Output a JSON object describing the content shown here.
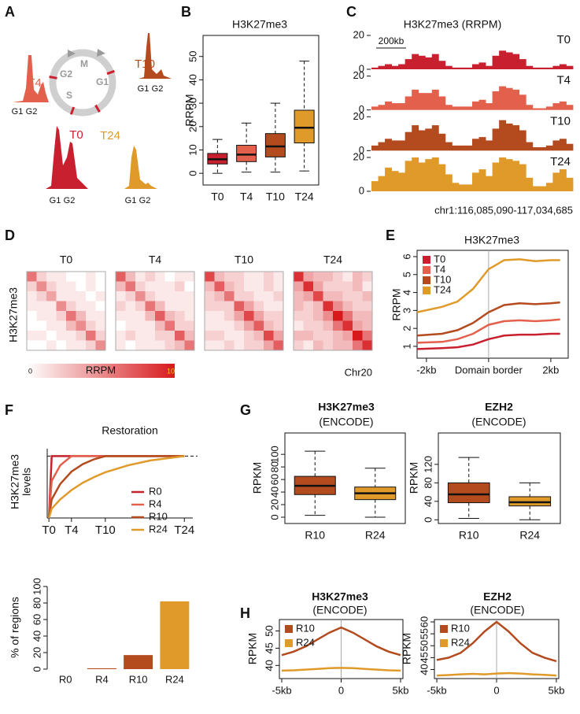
{
  "cell_cycle": {
    "panel": "A",
    "phases": [
      "M",
      "G2",
      "G1",
      "S"
    ],
    "timepoints": [
      "T0",
      "T4",
      "T10",
      "T24"
    ],
    "peak_labels": [
      "G1",
      "G2"
    ]
  },
  "chart_data": [
    {
      "type": "boxplot",
      "panel": "B",
      "title": "H3K27me3",
      "ylabel": "RRPM",
      "categories": [
        "T0",
        "T4",
        "T10",
        "T24"
      ],
      "colors": [
        "#c8202f",
        "#e3604c",
        "#b34b1f",
        "#e09a2a"
      ],
      "whisker_low": [
        0,
        0.5,
        0.5,
        1
      ],
      "q1": [
        4,
        5,
        7,
        13
      ],
      "median": [
        6,
        8,
        11.5,
        19.5
      ],
      "q3": [
        8.5,
        12,
        17,
        27
      ],
      "whisker_high": [
        14.5,
        21.5,
        30,
        48
      ],
      "ylim": [
        -5,
        59
      ],
      "yticks": [
        0,
        10,
        20,
        30,
        40,
        50
      ]
    },
    {
      "type": "track",
      "panel": "C",
      "title": "H3K27me3 (RRPM)",
      "scale_bar": "200kb",
      "region": "chr1:116,085,090-117,034,685",
      "ylim": [
        0,
        20
      ],
      "yticks": [
        0,
        20
      ],
      "series": [
        {
          "name": "T0",
          "color": "#c8202f",
          "values": [
            1,
            2,
            3,
            2,
            3,
            6,
            9,
            8,
            7,
            9,
            5,
            2,
            1,
            1,
            1,
            3,
            4,
            2,
            8,
            11,
            10,
            9,
            6,
            2,
            1,
            1,
            1,
            2,
            3,
            2
          ]
        },
        {
          "name": "T4",
          "color": "#e3604c",
          "values": [
            2,
            3,
            5,
            4,
            4,
            8,
            12,
            10,
            10,
            12,
            8,
            3,
            2,
            2,
            2,
            5,
            6,
            4,
            11,
            14,
            13,
            12,
            9,
            3,
            1,
            1,
            2,
            4,
            5,
            3
          ]
        },
        {
          "name": "T10",
          "color": "#b34b1f",
          "values": [
            3,
            5,
            7,
            6,
            6,
            11,
            15,
            12,
            13,
            15,
            10,
            5,
            3,
            3,
            3,
            7,
            8,
            6,
            13,
            18,
            16,
            15,
            12,
            5,
            2,
            2,
            3,
            6,
            7,
            4
          ]
        },
        {
          "name": "T24",
          "color": "#e09a2a",
          "values": [
            6,
            9,
            14,
            12,
            11,
            18,
            20,
            17,
            19,
            20,
            16,
            10,
            5,
            4,
            4,
            11,
            13,
            9,
            17,
            20,
            19,
            18,
            16,
            8,
            3,
            3,
            5,
            11,
            13,
            8
          ]
        }
      ]
    },
    {
      "type": "heatmap",
      "panel": "D",
      "ylabel": "H3K27me3",
      "footnote": "Chr20",
      "color": "#d7191c",
      "colorbar": {
        "label": "RRPM",
        "range": [
          0,
          10
        ]
      },
      "series": [
        {
          "name": "T0",
          "values": [
            [
              6,
              2,
              1,
              1,
              0,
              0,
              1,
              0
            ],
            [
              2,
              5,
              2,
              1,
              1,
              0,
              1,
              0
            ],
            [
              1,
              2,
              4,
              1,
              1,
              1,
              0,
              1
            ],
            [
              1,
              1,
              1,
              5,
              2,
              1,
              1,
              0
            ],
            [
              0,
              1,
              1,
              2,
              6,
              3,
              1,
              1
            ],
            [
              0,
              0,
              1,
              1,
              3,
              5,
              2,
              1
            ],
            [
              1,
              1,
              0,
              1,
              1,
              2,
              6,
              2
            ],
            [
              0,
              0,
              1,
              0,
              1,
              1,
              2,
              5
            ]
          ]
        },
        {
          "name": "T4",
          "values": [
            [
              7,
              3,
              1,
              2,
              1,
              0,
              1,
              1
            ],
            [
              3,
              6,
              2,
              1,
              1,
              1,
              2,
              0
            ],
            [
              1,
              2,
              5,
              2,
              1,
              1,
              1,
              1
            ],
            [
              2,
              1,
              2,
              6,
              3,
              1,
              1,
              1
            ],
            [
              1,
              1,
              1,
              3,
              7,
              3,
              2,
              1
            ],
            [
              0,
              1,
              1,
              1,
              3,
              6,
              2,
              2
            ],
            [
              1,
              2,
              1,
              1,
              2,
              2,
              7,
              3
            ],
            [
              1,
              0,
              1,
              1,
              1,
              2,
              3,
              6
            ]
          ]
        },
        {
          "name": "T10",
          "values": [
            [
              8,
              3,
              2,
              2,
              1,
              1,
              2,
              1
            ],
            [
              3,
              7,
              3,
              2,
              1,
              1,
              2,
              1
            ],
            [
              2,
              3,
              6,
              2,
              2,
              1,
              1,
              2
            ],
            [
              2,
              2,
              2,
              7,
              4,
              2,
              1,
              1
            ],
            [
              1,
              1,
              2,
              4,
              8,
              4,
              2,
              2
            ],
            [
              1,
              1,
              1,
              2,
              4,
              7,
              3,
              2
            ],
            [
              2,
              2,
              1,
              1,
              2,
              3,
              8,
              4
            ],
            [
              1,
              1,
              2,
              1,
              2,
              2,
              4,
              7
            ]
          ]
        },
        {
          "name": "T24",
          "values": [
            [
              9,
              4,
              3,
              3,
              2,
              1,
              3,
              2
            ],
            [
              4,
              9,
              4,
              2,
              2,
              2,
              3,
              1
            ],
            [
              3,
              4,
              8,
              3,
              3,
              2,
              2,
              3
            ],
            [
              3,
              2,
              3,
              9,
              5,
              3,
              2,
              2
            ],
            [
              2,
              2,
              3,
              5,
              10,
              6,
              3,
              3
            ],
            [
              1,
              2,
              2,
              3,
              6,
              9,
              4,
              3
            ],
            [
              3,
              3,
              2,
              2,
              3,
              4,
              10,
              6
            ],
            [
              2,
              1,
              3,
              2,
              3,
              3,
              6,
              9
            ]
          ]
        }
      ]
    },
    {
      "type": "line",
      "panel": "E",
      "title": "H3K27me3",
      "ylabel": "RRPM",
      "x": [
        -2.3,
        -1.5,
        -1,
        -0.5,
        0,
        0.5,
        1,
        1.5,
        2,
        2.3
      ],
      "series": [
        {
          "name": "T0",
          "color": "#c8202f",
          "values": [
            0.85,
            0.9,
            0.95,
            1.1,
            1.4,
            1.6,
            1.65,
            1.65,
            1.7,
            1.7
          ]
        },
        {
          "name": "T4",
          "color": "#e3604c",
          "values": [
            1.2,
            1.25,
            1.4,
            1.7,
            2.2,
            2.4,
            2.45,
            2.4,
            2.45,
            2.5
          ]
        },
        {
          "name": "T10",
          "color": "#b34b1f",
          "values": [
            1.6,
            1.7,
            1.9,
            2.3,
            2.9,
            3.3,
            3.4,
            3.35,
            3.4,
            3.45
          ]
        },
        {
          "name": "T24",
          "color": "#e09a2a",
          "values": [
            2.9,
            3.2,
            3.5,
            4.2,
            5.3,
            5.8,
            5.85,
            5.75,
            5.8,
            5.8
          ]
        }
      ],
      "xlim": [
        -2.3,
        2.56
      ],
      "ylim": [
        0.34,
        6.35
      ],
      "xticks": [
        {
          "value": -2,
          "label": "-2kb"
        },
        {
          "value": 0,
          "label": "Domain border"
        },
        {
          "value": 2,
          "label": "2kb"
        }
      ],
      "yticks": [
        1,
        2,
        3,
        4,
        5,
        6
      ],
      "vline": 0,
      "legend": "top-left",
      "legend_marker": "square"
    },
    {
      "type": "line",
      "panel": "F",
      "title": "Restoration",
      "ylabel": [
        "H3K27me3",
        "levels"
      ],
      "x": [
        0,
        0.5,
        2,
        4,
        6,
        8,
        10,
        14,
        18,
        24
      ],
      "series": [
        {
          "name": "R0",
          "color": "#c8202f",
          "values": [
            0,
            1,
            1,
            1,
            1,
            1,
            1,
            1,
            1,
            1
          ]
        },
        {
          "name": "R4",
          "color": "#e3604c",
          "values": [
            0,
            0.6,
            0.85,
            1,
            1,
            1,
            1,
            1,
            1,
            1
          ]
        },
        {
          "name": "R10",
          "color": "#b34b1f",
          "values": [
            0,
            0.3,
            0.55,
            0.75,
            0.87,
            0.95,
            1,
            1,
            1,
            1
          ]
        },
        {
          "name": "R24",
          "color": "#e09a2a",
          "values": [
            0,
            0.15,
            0.3,
            0.45,
            0.57,
            0.66,
            0.74,
            0.85,
            0.93,
            1
          ]
        }
      ],
      "xlim": [
        -0.3,
        25.5
      ],
      "ylim": [
        0,
        1.12
      ],
      "xticks": [
        {
          "value": 0,
          "label": "T0"
        },
        {
          "value": 4,
          "label": "T4"
        },
        {
          "value": 10,
          "label": "T10"
        },
        {
          "value": 24,
          "label": "T24"
        }
      ],
      "hline": 1,
      "tick_colors": true,
      "legend": "bottom-right",
      "legend_marker": "line"
    },
    {
      "type": "bar",
      "ylabel": "% of regions",
      "categories": [
        "R0",
        "R4",
        "R10",
        "R24"
      ],
      "values": [
        0,
        1,
        17,
        82
      ],
      "colors": [
        "#c8202f",
        "#b34b1f",
        "#b34b1f",
        "#e09a2a"
      ],
      "ylim": [
        0,
        100
      ],
      "yticks": [
        0,
        20,
        40,
        60,
        80,
        100
      ]
    },
    {
      "type": "boxplot",
      "panel": "G",
      "title": "H3K27me3",
      "subtitle": "(ENCODE)",
      "ylabel": "RPKM",
      "categories": [
        "R10",
        "R24"
      ],
      "colors": [
        "#b34b1f",
        "#e09a2a"
      ],
      "whisker_low": [
        3,
        0
      ],
      "q1": [
        36,
        28
      ],
      "median": [
        50,
        38
      ],
      "q3": [
        65,
        48
      ],
      "whisker_high": [
        105,
        78
      ],
      "ylim": [
        -10,
        134
      ],
      "yticks": [
        0,
        20,
        40,
        60,
        80,
        100
      ]
    },
    {
      "type": "boxplot",
      "title": "EZH2",
      "subtitle": "(ENCODE)",
      "ylabel": "RPKM",
      "categories": [
        "R10",
        "R24"
      ],
      "colors": [
        "#b34b1f",
        "#e09a2a"
      ],
      "whisker_low": [
        3,
        0
      ],
      "q1": [
        37,
        30
      ],
      "median": [
        55,
        38
      ],
      "q3": [
        80,
        50
      ],
      "whisker_high": [
        135,
        80
      ],
      "ylim": [
        -8,
        188
      ],
      "yticks": [
        0,
        40,
        80,
        120
      ]
    },
    {
      "type": "line",
      "panel": "H",
      "title": "H3K27me3",
      "subtitle": "(ENCODE)",
      "ylabel": "RPKM",
      "x": [
        -5,
        -4,
        -3,
        -2,
        -1,
        0,
        1,
        2,
        3,
        4,
        5
      ],
      "series": [
        {
          "name": "R10",
          "color": "#b34b1f",
          "values": [
            43,
            44,
            45.5,
            47.5,
            49.5,
            51,
            49.5,
            47.5,
            45.5,
            44,
            43
          ]
        },
        {
          "name": "R24",
          "color": "#e09a2a",
          "values": [
            38.5,
            38.6,
            38.8,
            39,
            39.2,
            39.3,
            39.2,
            39,
            38.8,
            38.6,
            38.5
          ]
        }
      ],
      "xlim": [
        -5.2,
        5.2
      ],
      "ylim": [
        36.2,
        53.3
      ],
      "xticks": [
        {
          "value": -5,
          "label": "-5kb"
        },
        0,
        {
          "value": 5,
          "label": "5kb"
        }
      ],
      "yticks": [
        40,
        45,
        50
      ],
      "vline": 0,
      "legend": "top-left",
      "legend_marker": "square"
    },
    {
      "type": "line",
      "title": "EZH2",
      "subtitle": "(ENCODE)",
      "ylabel": "RPKM",
      "x": [
        -5,
        -4,
        -3,
        -2,
        -1,
        0,
        1,
        2,
        3,
        4,
        5
      ],
      "series": [
        {
          "name": "R10",
          "color": "#b34b1f",
          "values": [
            44,
            45,
            47,
            51,
            56,
            60,
            56,
            51,
            47,
            45,
            43.5
          ]
        },
        {
          "name": "R24",
          "color": "#e09a2a",
          "values": [
            37.5,
            37.7,
            38,
            38.2,
            38,
            38.3,
            38.5,
            38.3,
            38,
            37.8,
            37.5
          ]
        }
      ],
      "xlim": [
        -5.2,
        5.2
      ],
      "ylim": [
        36.2,
        61
      ],
      "xticks": [
        {
          "value": -5,
          "label": "-5kb"
        },
        0,
        {
          "value": 5,
          "label": "5kb"
        }
      ],
      "yticks": [
        40,
        45,
        50,
        55,
        60
      ],
      "vline": 0,
      "legend": "top-left",
      "legend_marker": "square"
    }
  ]
}
